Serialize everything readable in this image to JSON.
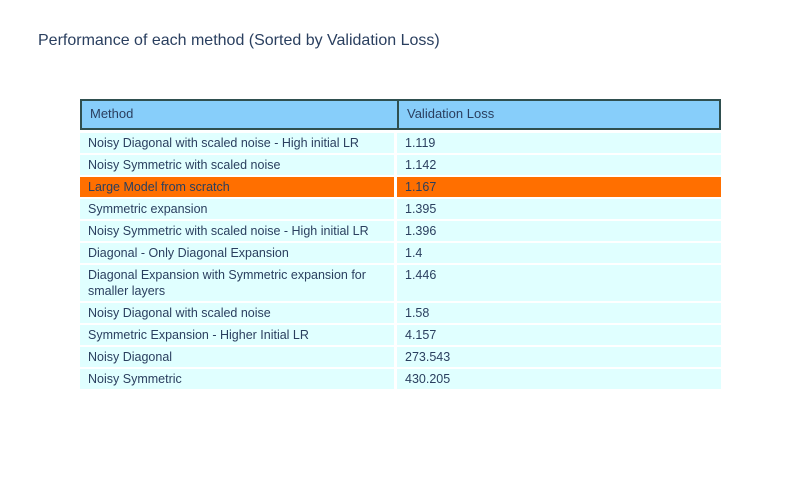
{
  "chart_data": {
    "type": "table",
    "title": "Performance of each method (Sorted by Validation Loss)",
    "columns": [
      "Method",
      "Validation Loss"
    ],
    "rows": [
      {
        "method": "Noisy Diagonal with scaled noise - High initial LR",
        "loss": "1.119",
        "highlight": false
      },
      {
        "method": "Noisy Symmetric with scaled noise",
        "loss": "1.142",
        "highlight": false
      },
      {
        "method": "Large Model from scratch",
        "loss": "1.167",
        "highlight": true
      },
      {
        "method": "Symmetric expansion",
        "loss": "1.395",
        "highlight": false
      },
      {
        "method": "Noisy Symmetric with scaled noise - High initial LR",
        "loss": "1.396",
        "highlight": false
      },
      {
        "method": "Diagonal - Only Diagonal Expansion",
        "loss": "1.4",
        "highlight": false
      },
      {
        "method": "Diagonal Expansion with Symmetric expansion for smaller layers",
        "loss": "1.446",
        "highlight": false
      },
      {
        "method": "Noisy Diagonal with scaled noise",
        "loss": "1.58",
        "highlight": false
      },
      {
        "method": "Symmetric Expansion - Higher Initial LR",
        "loss": "4.157",
        "highlight": false
      },
      {
        "method": "Noisy Diagonal",
        "loss": "273.543",
        "highlight": false
      },
      {
        "method": "Noisy Symmetric",
        "loss": "430.205",
        "highlight": false
      }
    ],
    "layout": {
      "legend": "none",
      "grid": "white row and column separators",
      "highlighted_row_index": 2
    }
  },
  "colors": {
    "header_bg": "#87CEFA",
    "header_border": "#2F4F4F",
    "cell_bg": "#E0FFFF",
    "highlight_bg": "#FF6F00",
    "text": "#2A3F5F",
    "page_bg": "#FFFFFF"
  }
}
